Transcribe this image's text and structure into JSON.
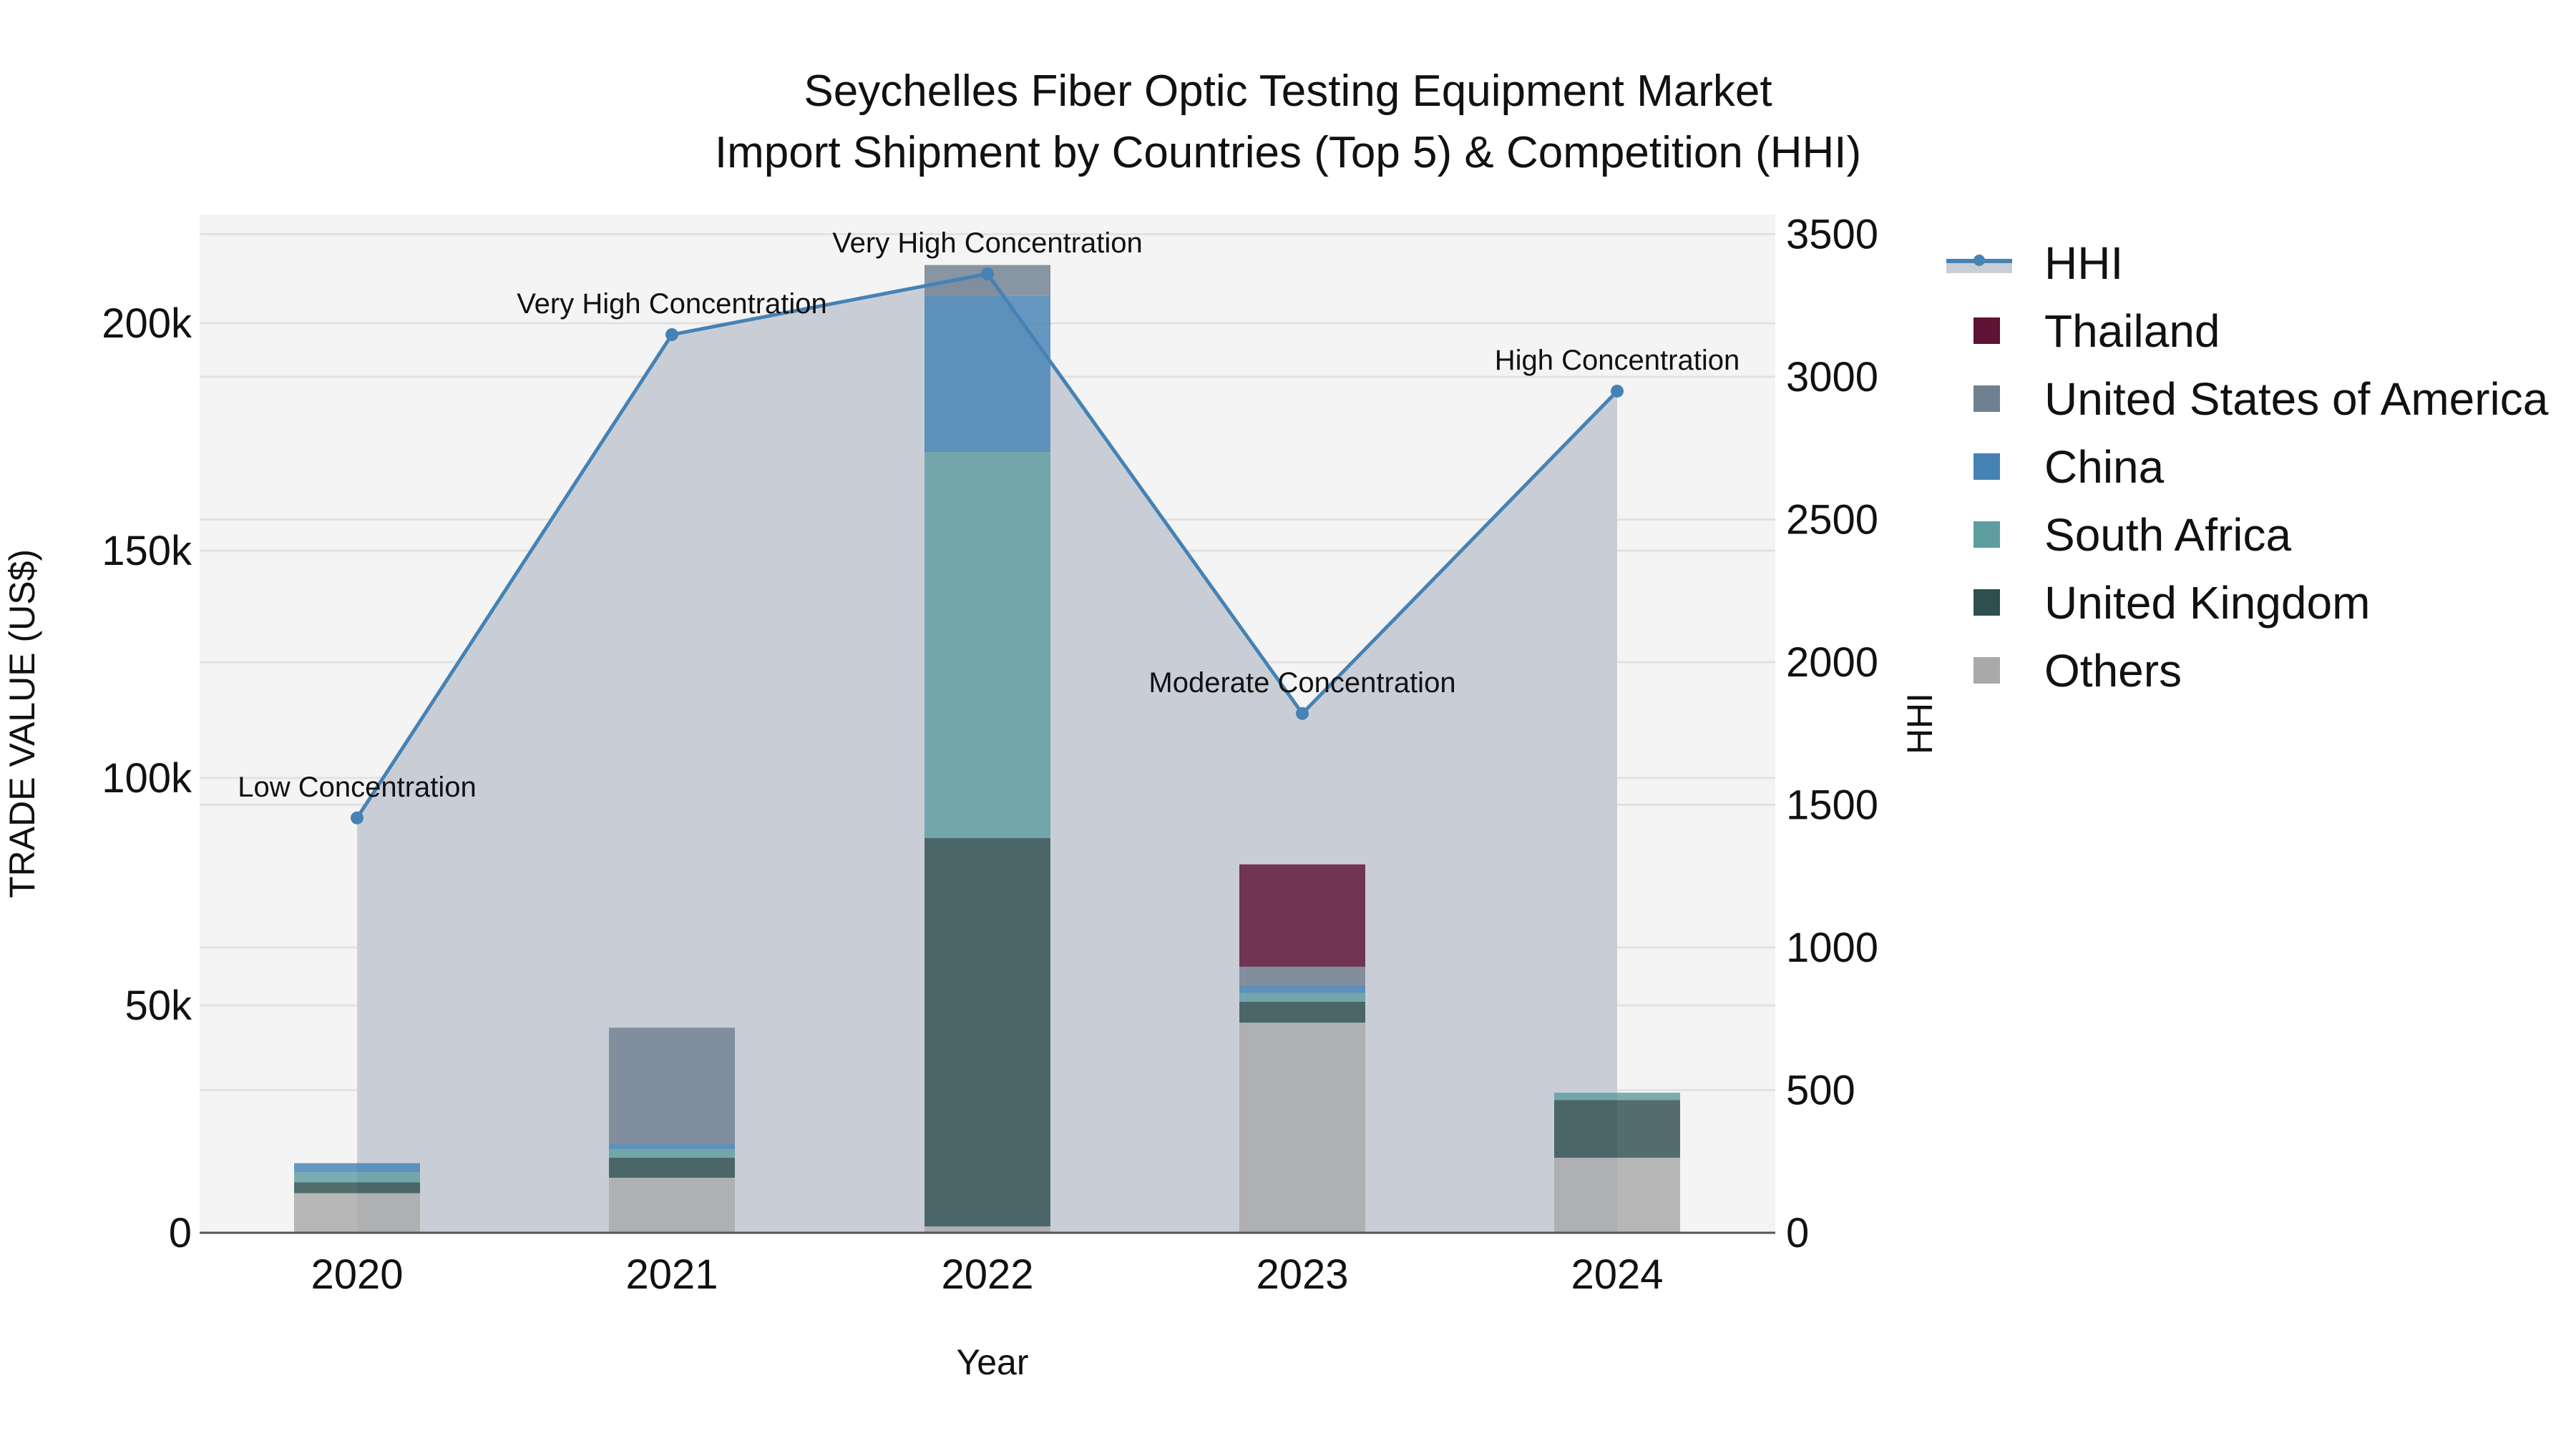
{
  "title": {
    "line1": "Seychelles Fiber Optic Testing Equipment Market",
    "line2": "Import Shipment by Countries (Top 5) & Competition (HHI)"
  },
  "axes": {
    "x_label": "Year",
    "y_left_label": "TRADE VALUE (US$)",
    "y_right_label": "HHI",
    "y_left_ticks": [
      "0",
      "50k",
      "100k",
      "150k",
      "200k"
    ],
    "y_right_ticks": [
      "0",
      "500",
      "1000",
      "1500",
      "2000",
      "2500",
      "3000",
      "3500"
    ],
    "x_ticks": [
      "2020",
      "2021",
      "2022",
      "2023",
      "2024"
    ]
  },
  "legend": [
    {
      "name": "HHI",
      "type": "line",
      "color": "#4682b4"
    },
    {
      "name": "Thailand",
      "type": "bar",
      "color": "#5e1234"
    },
    {
      "name": "United States of America",
      "type": "bar",
      "color": "#708090"
    },
    {
      "name": "China",
      "type": "bar",
      "color": "#4682b4"
    },
    {
      "name": "South Africa",
      "type": "bar",
      "color": "#5f9ea0"
    },
    {
      "name": "United Kingdom",
      "type": "bar",
      "color": "#2f4f4f"
    },
    {
      "name": "Others",
      "type": "bar",
      "color": "#a9a9a9"
    }
  ],
  "annotations": [
    {
      "year": "2020",
      "text": "Low Concentration"
    },
    {
      "year": "2021",
      "text": "Very High Concentration"
    },
    {
      "year": "2022",
      "text": "Very High Concentration"
    },
    {
      "year": "2023",
      "text": "Moderate Concentration"
    },
    {
      "year": "2024",
      "text": "High Concentration"
    }
  ],
  "chart_data": {
    "type": "bar",
    "subtype": "stacked bar with secondary-axis line/area",
    "title": "Seychelles Fiber Optic Testing Equipment Market\nImport Shipment by Countries (Top 5) & Competition (HHI)",
    "xlabel": "Year",
    "ylabel": "TRADE VALUE (US$)",
    "y2label": "HHI",
    "categories": [
      "2020",
      "2021",
      "2022",
      "2023",
      "2024"
    ],
    "ylim": [
      0,
      224000
    ],
    "y2lim": [
      0,
      3660
    ],
    "grid": true,
    "legend_position": "right",
    "series": [
      {
        "name": "Others",
        "axis": "y",
        "color": "#a9a9a9",
        "values": [
          8700,
          12100,
          1400,
          46200,
          16500
        ]
      },
      {
        "name": "United Kingdom",
        "axis": "y",
        "color": "#2f4f4f",
        "values": [
          2400,
          4400,
          85400,
          4600,
          12700
        ]
      },
      {
        "name": "South Africa",
        "axis": "y",
        "color": "#5f9ea0",
        "values": [
          2200,
          1900,
          84900,
          1900,
          1600
        ]
      },
      {
        "name": "China",
        "axis": "y",
        "color": "#4682b4",
        "values": [
          2000,
          1200,
          34300,
          1700,
          0
        ]
      },
      {
        "name": "United States of America",
        "axis": "y",
        "color": "#708090",
        "values": [
          0,
          25500,
          6800,
          4100,
          0
        ]
      },
      {
        "name": "Thailand",
        "axis": "y",
        "color": "#5e1234",
        "values": [
          0,
          0,
          0,
          22500,
          0
        ]
      },
      {
        "name": "HHI",
        "axis": "y2",
        "type": "line",
        "color": "#4682b4",
        "values": [
          1454,
          3148,
          3361,
          1820,
          2950
        ]
      }
    ],
    "totals": [
      15300,
      45100,
      212800,
      81000,
      30800
    ],
    "annotations": [
      "Low Concentration",
      "Very High Concentration",
      "Very High Concentration",
      "Moderate Concentration",
      "High Concentration"
    ]
  }
}
